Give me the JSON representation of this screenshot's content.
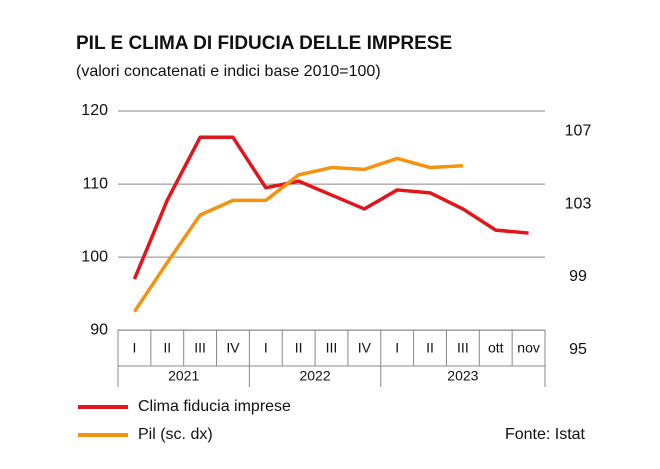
{
  "chart_data": {
    "type": "line",
    "title": "PIL E CLIMA DI FIDUCIA DELLE IMPRESE",
    "subtitle": "(valori concatenati e indici base 2010=100)",
    "categories": [
      "I",
      "II",
      "III",
      "IV",
      "I",
      "II",
      "III",
      "IV",
      "I",
      "II",
      "III",
      "ott",
      "nov"
    ],
    "groups": [
      {
        "label": "2021",
        "span": 4
      },
      {
        "label": "2022",
        "span": 4
      },
      {
        "label": "2023",
        "span": 5
      }
    ],
    "series": [
      {
        "name": "Clima fiducia imprese",
        "color": "#e3151c",
        "values": [
          97.0,
          107.8,
          116.4,
          116.4,
          109.5,
          110.4,
          108.5,
          106.6,
          109.2,
          108.8,
          106.6,
          103.7,
          103.3
        ]
      },
      {
        "name": "Pil (sc. dx)",
        "color": "#f5930f",
        "axis": "y2",
        "values": [
          97.1,
          99.8,
          102.4,
          103.2,
          103.2,
          104.6,
          105.0,
          104.9,
          105.5,
          105.0,
          105.1,
          null,
          null
        ]
      }
    ],
    "ylim": [
      87.3,
      120
    ],
    "yticks": [
      90,
      100,
      110,
      120
    ],
    "y2lim": [
      95,
      108.1
    ],
    "y2ticks": [
      95,
      99,
      103,
      107
    ],
    "grid": true,
    "source": "Fonte: Istat"
  }
}
